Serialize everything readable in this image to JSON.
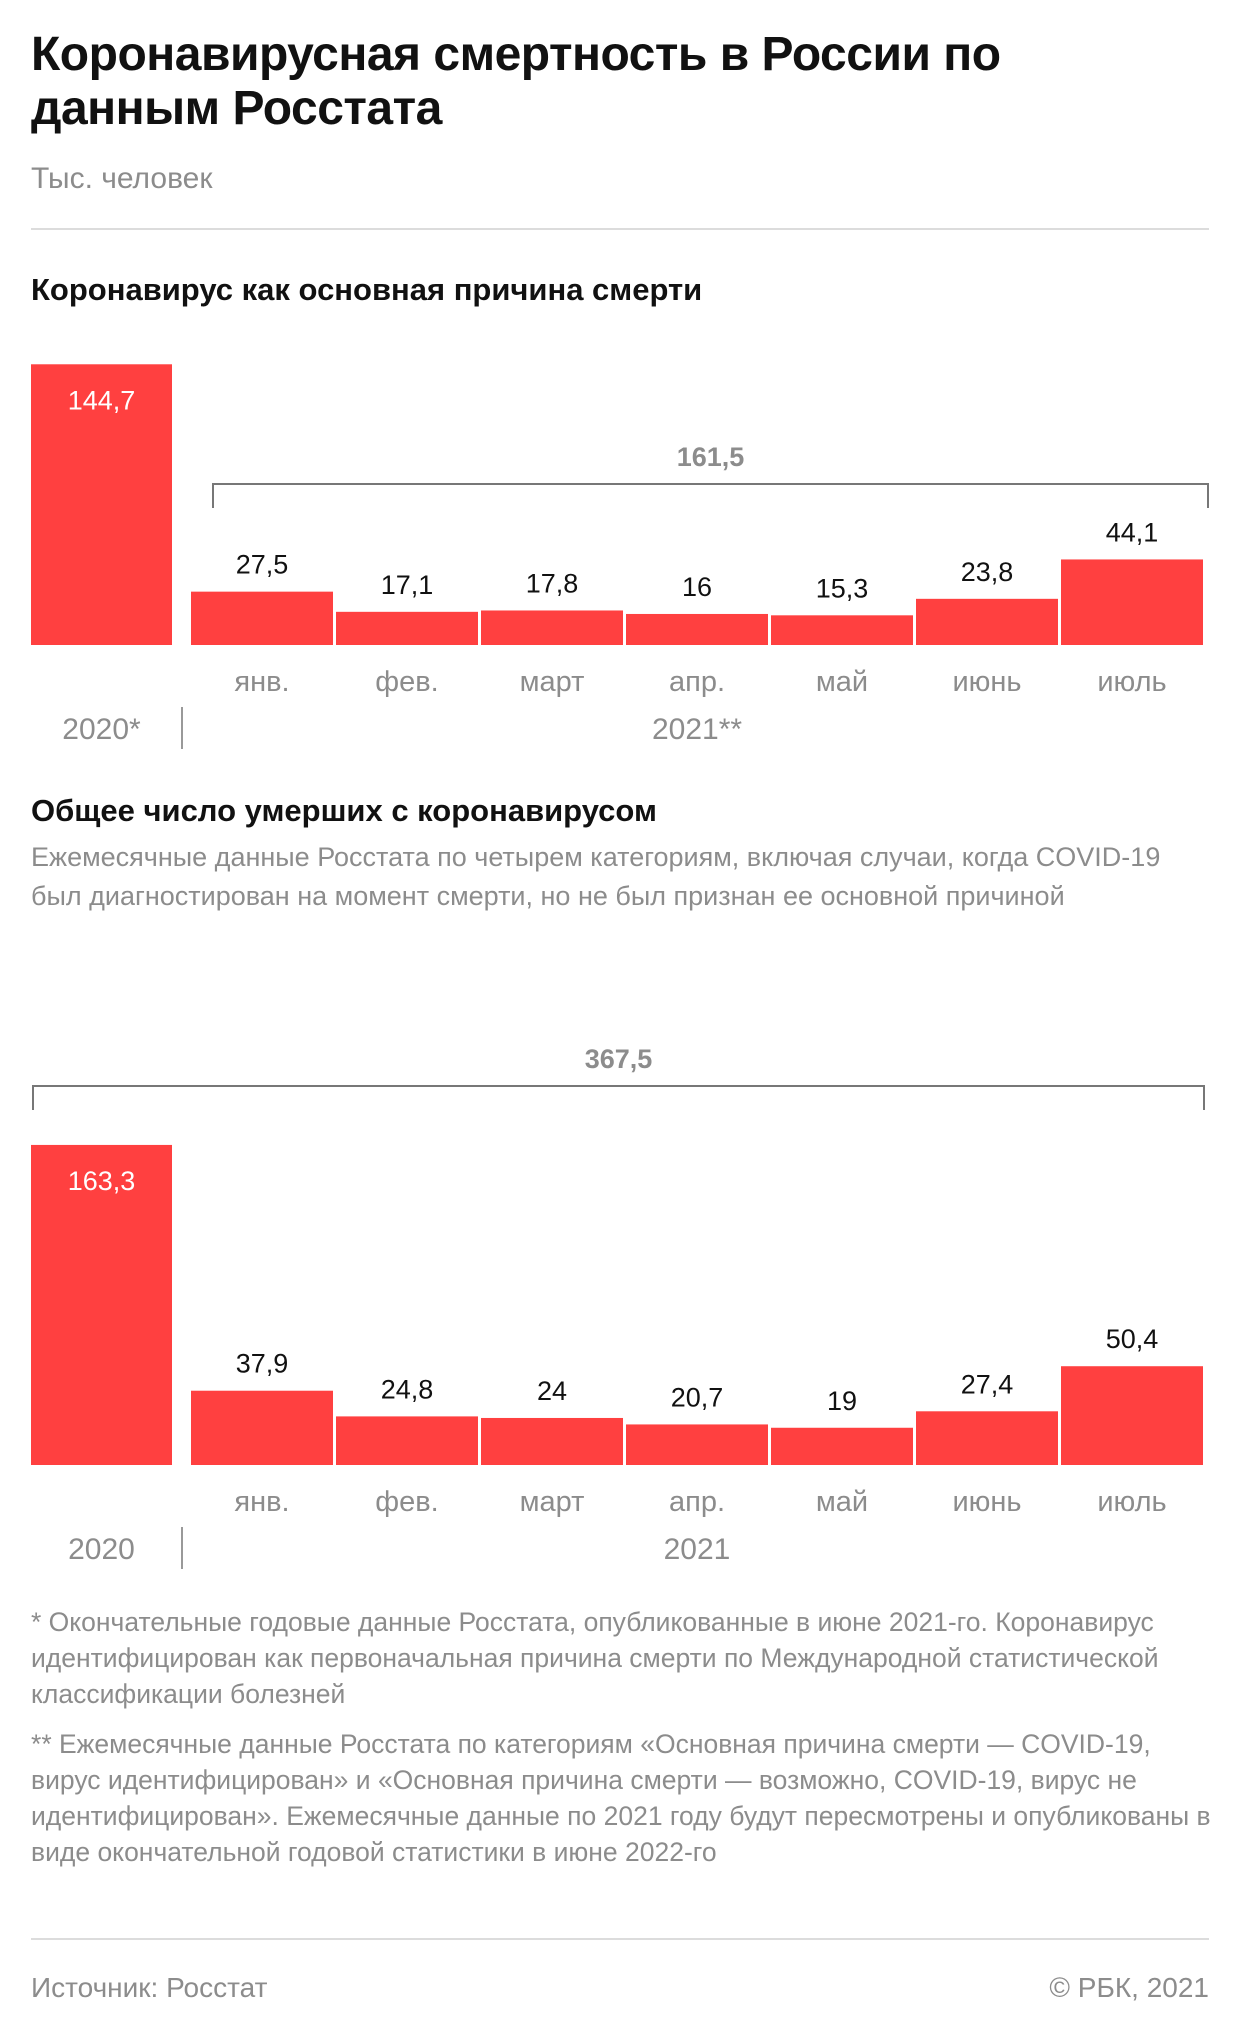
{
  "title": "Коронавирусная смертность в России по данным Росстата",
  "subtitle": "Тыс. человек",
  "chart_data": [
    {
      "type": "bar",
      "title": "Коронавирус как основная причина смерти",
      "year_total": {
        "label": "2020*",
        "value": 144.7,
        "value_label": "144,7"
      },
      "group_label": "2021**",
      "group_total": {
        "value": 161.5,
        "label": "161,5"
      },
      "categories": [
        "янв.",
        "фев.",
        "март",
        "апр.",
        "май",
        "июнь",
        "июль"
      ],
      "values": [
        27.5,
        17.1,
        17.8,
        16,
        15.3,
        23.8,
        44.1
      ],
      "value_labels": [
        "27,5",
        "17,1",
        "17,8",
        "16",
        "15,3",
        "23,8",
        "44,1"
      ]
    },
    {
      "type": "bar",
      "title": "Общее число умерших с коронавирусом",
      "note": "Ежемесячные данные Росстата по четырем категориям, включая случаи, когда COVID-19 был диагностирован на момент смерти, но не был признан ее основной причиной",
      "year_total": {
        "label": "2020",
        "value": 163.3,
        "value_label": "163,3"
      },
      "group_label": "2021",
      "overall_total": {
        "value": 367.5,
        "label": "367,5"
      },
      "categories": [
        "янв.",
        "фев.",
        "март",
        "апр.",
        "май",
        "июнь",
        "июль"
      ],
      "values": [
        37.9,
        24.8,
        24,
        20.7,
        19,
        27.4,
        50.4
      ],
      "value_labels": [
        "37,9",
        "24,8",
        "24",
        "20,7",
        "19",
        "27,4",
        "50,4"
      ]
    }
  ],
  "footnotes": [
    "* Окончательные годовые данные Росстата, опубликованные в июне 2021-го. Коронавирус идентифицирован как первоначальная причина смерти по Международной статистической классификации болезней",
    "** Ежемесячные данные Росстата по категориям «Основная причина смерти — COVID-19, вирус идентифицирован» и «Основная причина смерти — возможно, COVID-19, вирус не идентифицирован». Ежемесячные данные по 2021 году будут пересмотрены и опубликованы в виде окончательной годовой статистики в июне 2022-го"
  ],
  "source": "Источник: Росстат",
  "copyright": "© РБК, 2021",
  "colors": {
    "bar": "#ff4040",
    "muted": "#8c8c8c",
    "bracket": "#777777"
  }
}
